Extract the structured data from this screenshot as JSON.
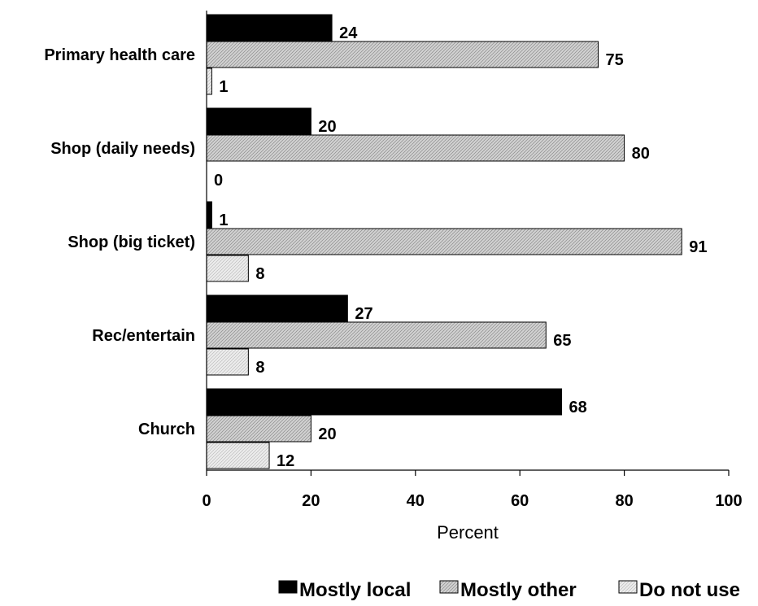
{
  "chart_data": {
    "type": "bar",
    "orientation": "horizontal",
    "categories": [
      "Primary health care",
      "Shop (daily needs)",
      "Shop (big ticket)",
      "Rec/entertain",
      "Church"
    ],
    "series": [
      {
        "name": "Mostly local",
        "values": [
          24,
          20,
          1,
          27,
          68
        ],
        "color": "#000000"
      },
      {
        "name": "Mostly other",
        "values": [
          75,
          80,
          91,
          65,
          20
        ],
        "color": "#c8c8c8"
      },
      {
        "name": "Do not use",
        "values": [
          1,
          0,
          8,
          8,
          12
        ],
        "color": "#e4e4e4"
      }
    ],
    "xlabel": "Percent",
    "xlim": [
      0,
      100
    ],
    "xticks": [
      0,
      20,
      40,
      60,
      80,
      100
    ],
    "legend_position": "bottom",
    "grid": false
  }
}
